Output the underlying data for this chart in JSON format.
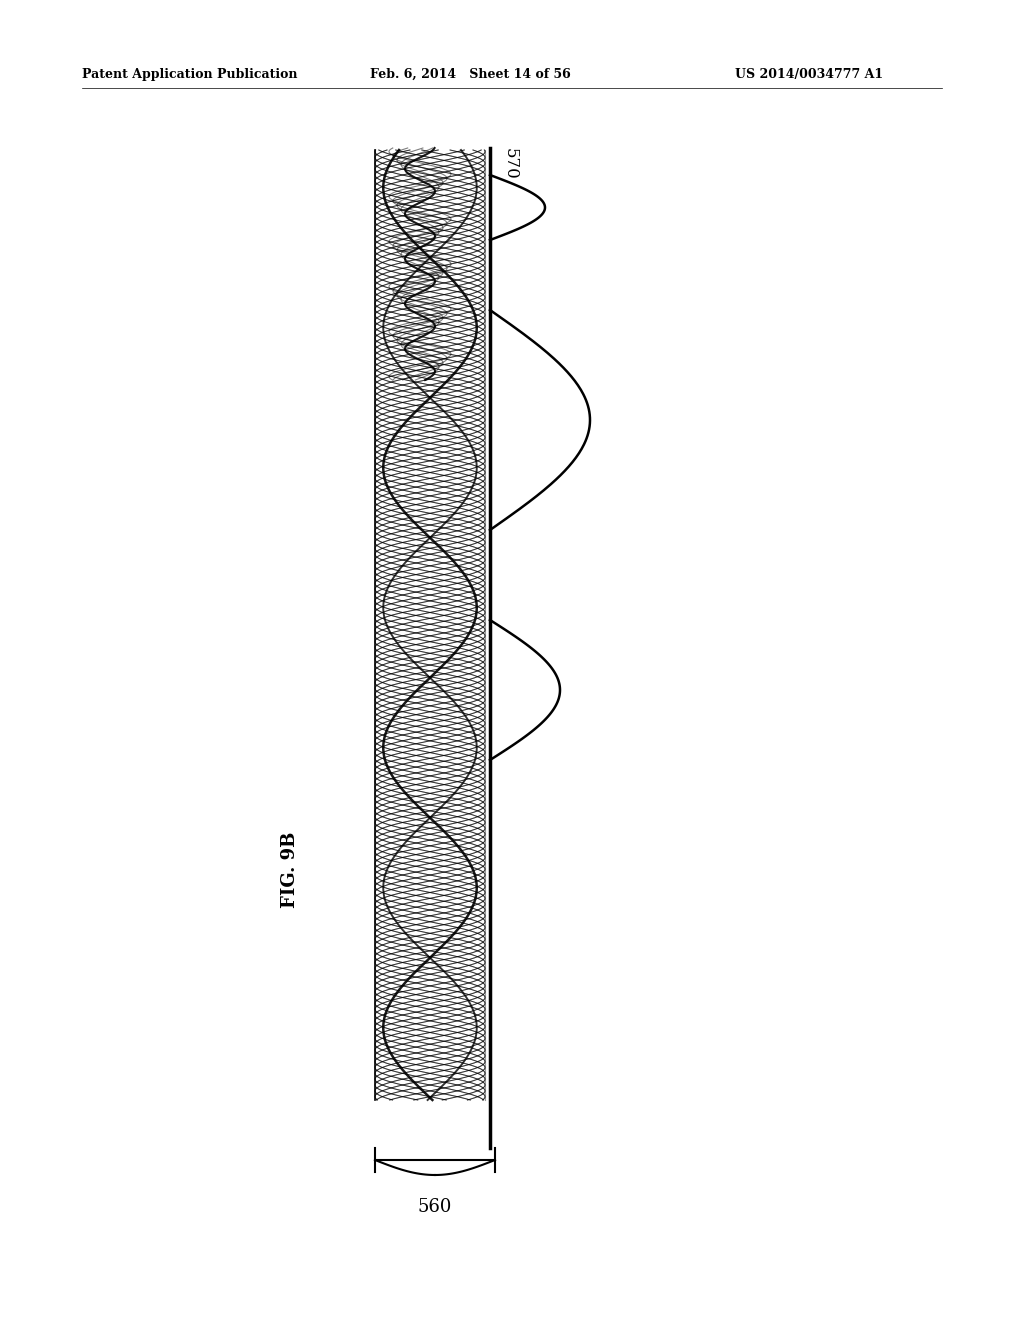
{
  "header_left": "Patent Application Publication",
  "header_mid": "Feb. 6, 2014   Sheet 14 of 56",
  "header_right": "US 2014/0034777 A1",
  "fig_label": "FIG. 9B",
  "label_570": "570",
  "label_560": "560",
  "bg_color": "#ffffff",
  "line_color": "#000000",
  "figure_width": 10.24,
  "figure_height": 13.2
}
